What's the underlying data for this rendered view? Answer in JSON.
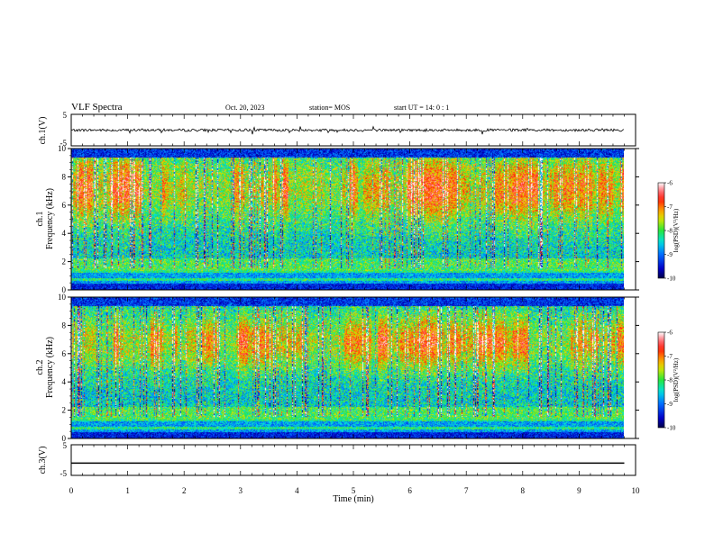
{
  "header": {
    "title": "VLF Spectra",
    "date": "Oct. 20, 2023",
    "station": "station= MOS",
    "start": "start  UT =   14: 0  : 1"
  },
  "chart_data": [
    {
      "type": "line",
      "panel": "ch1-waveform",
      "ylabel": "ch.1(V)",
      "yticks": [
        "5",
        "-5"
      ],
      "ylim": [
        -5,
        5
      ],
      "xlim": [
        0,
        10
      ],
      "series": [
        {
          "x": [
            0,
            9.8
          ],
          "y": [
            0,
            0
          ]
        }
      ]
    },
    {
      "type": "heatmap",
      "panel": "ch1-spectrogram",
      "ylabel": "ch.1\nFrequency (kHz)",
      "ylabel_lines": [
        "ch.1",
        "Frequency (kHz)"
      ],
      "yticks": [
        "0",
        "2",
        "4",
        "6",
        "8",
        "10"
      ],
      "ylim": [
        0,
        10
      ],
      "xlim": [
        0,
        9.8
      ],
      "colorbar": {
        "label": "log(PSD)(V²/Hz)",
        "ticks": [
          "-6",
          "-7",
          "-8",
          "-9",
          "-10"
        ],
        "range": [
          -10,
          -6
        ]
      }
    },
    {
      "type": "heatmap",
      "panel": "ch2-spectrogram",
      "ylabel_lines": [
        "ch.2",
        "Frequency (kHz)"
      ],
      "yticks": [
        "0",
        "2",
        "4",
        "6",
        "8",
        "10"
      ],
      "ylim": [
        0,
        10
      ],
      "xlim": [
        0,
        9.8
      ],
      "colorbar": {
        "label": "log(PSD)(V²/Hz)",
        "ticks": [
          "-6",
          "-7",
          "-8",
          "-9",
          "-10"
        ],
        "range": [
          -10,
          -6
        ]
      }
    },
    {
      "type": "line",
      "panel": "ch3-waveform",
      "ylabel": "ch.3(V)",
      "yticks": [
        "5",
        "-5"
      ],
      "ylim": [
        -5,
        5
      ],
      "xlim": [
        0,
        10
      ],
      "series": [
        {
          "x": [
            0,
            9.8
          ],
          "y": [
            -1,
            -1
          ]
        }
      ]
    }
  ],
  "xaxis": {
    "label": "Time  (min)",
    "ticks": [
      "0",
      "1",
      "2",
      "3",
      "4",
      "5",
      "6",
      "7",
      "8",
      "9",
      "10"
    ],
    "range": [
      0,
      10
    ]
  }
}
